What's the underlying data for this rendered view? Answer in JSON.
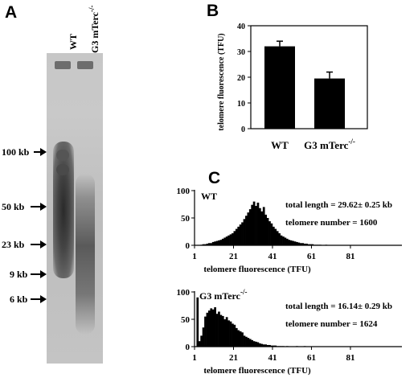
{
  "panels": {
    "a": "A",
    "b": "B",
    "c": "C"
  },
  "gel": {
    "lanes": [
      "WT",
      "G3 mTerc"
    ],
    "lane2_superscript": "-/-",
    "markers": [
      {
        "label": "100 kb",
        "kb": 100
      },
      {
        "label": "50 kb",
        "kb": 50
      },
      {
        "label": "23 kb",
        "kb": 23
      },
      {
        "label": "9 kb",
        "kb": 9
      },
      {
        "label": "6 kb",
        "kb": 6
      }
    ]
  },
  "bar_chart": {
    "ylabel": "telomere fluorescence (TFU)",
    "yticks": [
      "0",
      "10",
      "20",
      "30",
      "40"
    ],
    "xlabel_wt": "WT",
    "xlabel_g3": "G3 mTerc",
    "xlabel_g3_sup": "-/-"
  },
  "histograms": {
    "wt": {
      "label": "WT",
      "stats_length": "total length = 29.62±  0.25 kb",
      "stats_number": "telomere number = 1600",
      "yticks": [
        "0",
        "50",
        "100"
      ],
      "xticks": [
        "1",
        "21",
        "41",
        "61",
        "81"
      ],
      "xlabel": "telomere fluorescence (TFU)"
    },
    "g3": {
      "label": "G3 mTerc",
      "label_sup": "-/-",
      "stats_length": "total length = 16.14±  0.29 kb",
      "stats_number": "telomere number = 1624",
      "yticks": [
        "0",
        "50",
        "100"
      ],
      "xticks": [
        "1",
        "21",
        "41",
        "61",
        "81"
      ],
      "xlabel": "telomere fluorescence (TFU)"
    }
  },
  "chart_data": [
    {
      "type": "bar",
      "categories": [
        "WT",
        "G3 mTerc-/-"
      ],
      "values": [
        32,
        19.5
      ],
      "errors": [
        2,
        2.5
      ],
      "ylabel": "telomere fluorescence (TFU)",
      "ylim": [
        0,
        40
      ]
    },
    {
      "type": "bar",
      "name": "WT histogram",
      "xlim": [
        1,
        100
      ],
      "ylim": [
        0,
        100
      ],
      "bin_width": 1,
      "values": [
        0,
        0,
        0,
        1,
        2,
        2,
        3,
        4,
        4,
        6,
        7,
        8,
        9,
        10,
        12,
        14,
        16,
        18,
        20,
        22,
        26,
        30,
        34,
        38,
        42,
        48,
        54,
        60,
        66,
        74,
        80,
        72,
        78,
        68,
        62,
        70,
        56,
        50,
        44,
        40,
        34,
        30,
        26,
        22,
        18,
        16,
        14,
        12,
        10,
        9,
        8,
        7,
        6,
        5,
        4,
        4,
        3,
        3,
        2,
        2,
        2,
        1,
        1,
        1,
        1,
        0,
        0,
        1,
        0,
        0,
        0,
        0,
        0,
        0,
        0,
        0,
        0,
        0,
        0,
        0
      ]
    },
    {
      "type": "bar",
      "name": "G3 mTerc-/- histogram",
      "xlim": [
        1,
        100
      ],
      "ylim": [
        0,
        100
      ],
      "bin_width": 1,
      "values": [
        0,
        90,
        10,
        20,
        35,
        55,
        62,
        66,
        70,
        68,
        72,
        60,
        64,
        58,
        56,
        50,
        54,
        48,
        46,
        42,
        40,
        34,
        30,
        28,
        26,
        20,
        18,
        16,
        14,
        12,
        10,
        9,
        8,
        6,
        5,
        4,
        4,
        3,
        3,
        2,
        2,
        2,
        1,
        1,
        1,
        1,
        0,
        1,
        0,
        0,
        0,
        0,
        1,
        0,
        0,
        0,
        1,
        0,
        0,
        0,
        0
      ]
    }
  ]
}
